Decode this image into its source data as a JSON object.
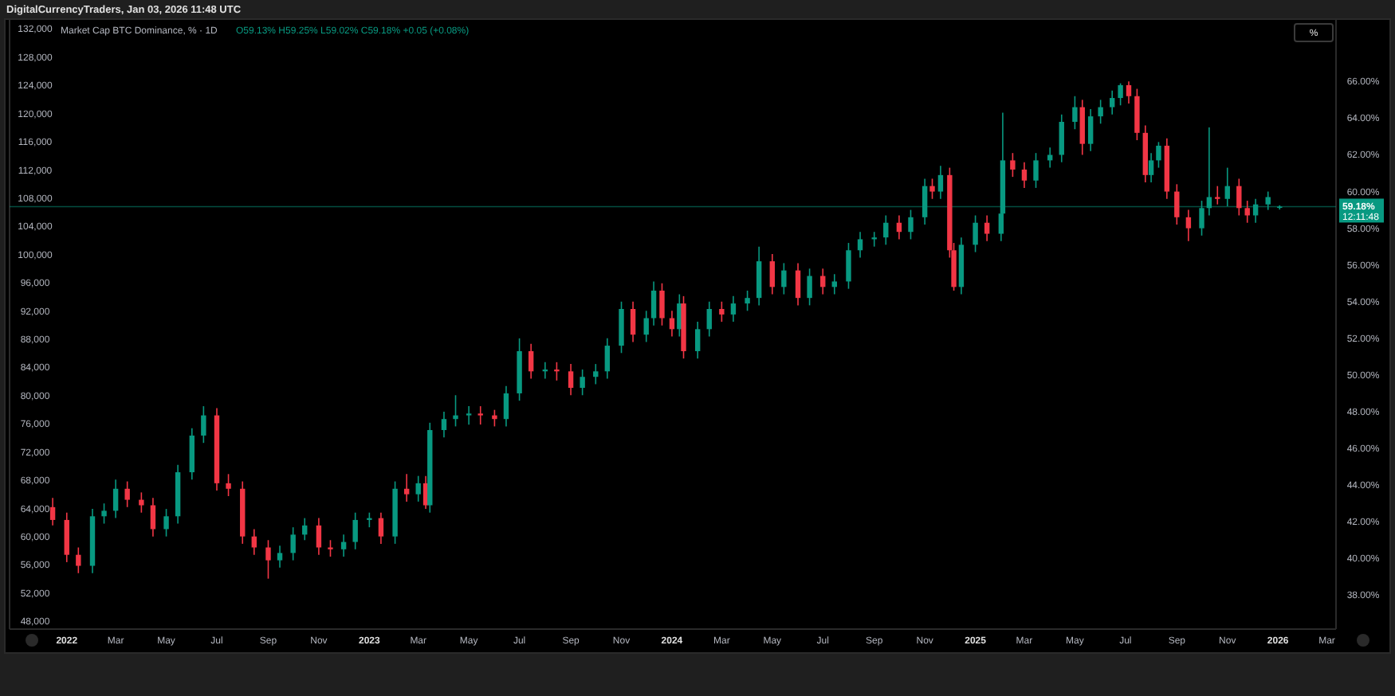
{
  "chart_data": {
    "type": "candlestick",
    "title": "Market Cap BTC Dominance, % · 1D",
    "annotations": [
      "DigitalCurrencyTraders, Jan 03, 2026 11:48 UTC",
      "O59.13% H59.25% L59.02% C59.18% +0.05 (+0.08%)",
      "12:11:48",
      "%"
    ],
    "x": [
      "2021-12-15",
      "2022-01-01",
      "2022-01-15",
      "2022-02-01",
      "2022-02-15",
      "2022-03-01",
      "2022-03-15",
      "2022-04-01",
      "2022-04-15",
      "2022-05-01",
      "2022-05-15",
      "2022-06-01",
      "2022-06-15",
      "2022-07-01",
      "2022-07-15",
      "2022-08-01",
      "2022-08-15",
      "2022-09-01",
      "2022-09-15",
      "2022-10-01",
      "2022-10-15",
      "2022-11-01",
      "2022-11-15",
      "2022-12-01",
      "2022-12-15",
      "2023-01-01",
      "2023-01-15",
      "2023-02-01",
      "2023-02-15",
      "2023-03-01",
      "2023-03-10",
      "2023-03-15",
      "2023-04-01",
      "2023-04-15",
      "2023-05-01",
      "2023-05-15",
      "2023-06-01",
      "2023-06-15",
      "2023-07-01",
      "2023-07-15",
      "2023-08-01",
      "2023-08-15",
      "2023-09-01",
      "2023-09-15",
      "2023-10-01",
      "2023-10-15",
      "2023-11-01",
      "2023-11-15",
      "2023-12-01",
      "2023-12-10",
      "2023-12-20",
      "2024-01-01",
      "2024-01-10",
      "2024-01-15",
      "2024-02-01",
      "2024-02-15",
      "2024-03-01",
      "2024-03-15",
      "2024-04-01",
      "2024-04-15",
      "2024-05-01",
      "2024-05-15",
      "2024-06-01",
      "2024-06-15",
      "2024-07-01",
      "2024-07-15",
      "2024-08-01",
      "2024-08-15",
      "2024-09-01",
      "2024-09-15",
      "2024-10-01",
      "2024-10-15",
      "2024-11-01",
      "2024-11-10",
      "2024-11-20",
      "2024-12-01",
      "2024-12-06",
      "2024-12-15",
      "2025-01-01",
      "2025-01-15",
      "2025-02-01",
      "2025-02-03",
      "2025-02-15",
      "2025-03-01",
      "2025-03-15",
      "2025-04-01",
      "2025-04-15",
      "2025-05-01",
      "2025-05-10",
      "2025-05-20",
      "2025-06-01",
      "2025-06-15",
      "2025-06-25",
      "2025-07-05",
      "2025-07-15",
      "2025-07-25",
      "2025-08-01",
      "2025-08-10",
      "2025-08-20",
      "2025-09-01",
      "2025-09-15",
      "2025-10-01",
      "2025-10-10",
      "2025-10-20",
      "2025-11-01",
      "2025-11-15",
      "2025-11-25",
      "2025-12-05",
      "2025-12-20",
      "2026-01-03"
    ],
    "ohlc": [
      [
        42.8,
        43.3,
        41.8,
        42.1
      ],
      [
        42.1,
        42.5,
        39.8,
        40.2
      ],
      [
        40.2,
        40.6,
        39.2,
        39.6
      ],
      [
        39.6,
        42.7,
        39.2,
        42.3
      ],
      [
        42.3,
        43.0,
        41.9,
        42.6
      ],
      [
        42.6,
        44.3,
        42.2,
        43.8
      ],
      [
        43.8,
        44.2,
        42.8,
        43.2
      ],
      [
        43.2,
        43.6,
        42.5,
        42.9
      ],
      [
        42.9,
        43.3,
        41.2,
        41.6
      ],
      [
        41.6,
        42.7,
        41.2,
        42.3
      ],
      [
        42.3,
        45.1,
        41.9,
        44.7
      ],
      [
        44.7,
        47.1,
        44.3,
        46.7
      ],
      [
        46.7,
        48.3,
        46.3,
        47.8
      ],
      [
        47.8,
        48.2,
        43.7,
        44.1
      ],
      [
        44.1,
        44.6,
        43.4,
        43.8
      ],
      [
        43.8,
        44.2,
        40.8,
        41.2
      ],
      [
        41.2,
        41.6,
        40.2,
        40.6
      ],
      [
        40.6,
        41.0,
        38.9,
        39.9
      ],
      [
        39.9,
        40.7,
        39.5,
        40.3
      ],
      [
        40.3,
        41.7,
        39.9,
        41.3
      ],
      [
        41.3,
        42.2,
        41.0,
        41.8
      ],
      [
        41.8,
        42.2,
        40.2,
        40.6
      ],
      [
        40.6,
        41.0,
        40.1,
        40.5
      ],
      [
        40.5,
        41.3,
        40.1,
        40.9
      ],
      [
        40.9,
        42.5,
        40.5,
        42.1
      ],
      [
        42.1,
        42.5,
        41.7,
        42.2
      ],
      [
        42.2,
        42.5,
        40.8,
        41.2
      ],
      [
        41.2,
        44.2,
        40.8,
        43.8
      ],
      [
        43.8,
        44.6,
        43.1,
        43.5
      ],
      [
        43.5,
        44.5,
        43.1,
        44.1
      ],
      [
        44.1,
        44.5,
        42.7,
        42.9
      ],
      [
        42.9,
        47.4,
        42.5,
        47.0
      ],
      [
        47.0,
        48.0,
        46.6,
        47.6
      ],
      [
        47.6,
        48.9,
        47.2,
        47.8
      ],
      [
        47.8,
        48.3,
        47.3,
        47.9
      ],
      [
        47.9,
        48.3,
        47.3,
        47.8
      ],
      [
        47.8,
        48.1,
        47.2,
        47.6
      ],
      [
        47.6,
        49.4,
        47.2,
        49.0
      ],
      [
        49.0,
        52.0,
        48.6,
        51.3
      ],
      [
        51.3,
        51.7,
        49.8,
        50.2
      ],
      [
        50.2,
        50.7,
        49.8,
        50.3
      ],
      [
        50.3,
        50.7,
        49.7,
        50.2
      ],
      [
        50.2,
        50.6,
        48.9,
        49.3
      ],
      [
        49.3,
        50.3,
        48.9,
        49.9
      ],
      [
        49.9,
        50.6,
        49.5,
        50.2
      ],
      [
        50.2,
        52.0,
        49.8,
        51.6
      ],
      [
        51.6,
        54.0,
        51.2,
        53.6
      ],
      [
        53.6,
        54.0,
        51.8,
        52.2
      ],
      [
        52.2,
        53.5,
        51.8,
        53.1
      ],
      [
        53.1,
        55.1,
        52.7,
        54.6
      ],
      [
        54.6,
        55.0,
        52.7,
        53.1
      ],
      [
        53.1,
        53.5,
        52.1,
        52.5
      ],
      [
        52.5,
        54.4,
        52.1,
        53.9
      ],
      [
        53.9,
        54.3,
        50.9,
        51.3
      ],
      [
        51.3,
        52.9,
        50.9,
        52.5
      ],
      [
        52.5,
        54.0,
        52.1,
        53.6
      ],
      [
        53.6,
        54.0,
        52.9,
        53.3
      ],
      [
        53.3,
        54.3,
        52.9,
        53.9
      ],
      [
        53.9,
        54.6,
        53.5,
        54.2
      ],
      [
        54.2,
        57.0,
        53.8,
        56.2
      ],
      [
        56.2,
        56.6,
        54.4,
        54.8
      ],
      [
        54.8,
        56.1,
        54.4,
        55.7
      ],
      [
        55.7,
        56.1,
        53.8,
        54.2
      ],
      [
        54.2,
        55.8,
        53.8,
        55.4
      ],
      [
        55.4,
        55.8,
        54.4,
        54.8
      ],
      [
        54.8,
        55.5,
        54.4,
        55.1
      ],
      [
        55.1,
        57.2,
        54.7,
        56.8
      ],
      [
        56.8,
        57.8,
        56.4,
        57.4
      ],
      [
        57.4,
        57.8,
        57.0,
        57.5
      ],
      [
        57.5,
        58.7,
        57.1,
        58.3
      ],
      [
        58.3,
        58.7,
        57.4,
        57.8
      ],
      [
        57.8,
        59.0,
        57.4,
        58.6
      ],
      [
        58.6,
        60.7,
        58.2,
        60.3
      ],
      [
        60.3,
        60.7,
        59.6,
        60.0
      ],
      [
        60.0,
        61.4,
        59.6,
        60.9
      ],
      [
        60.9,
        61.3,
        56.4,
        56.8
      ],
      [
        56.8,
        57.2,
        54.6,
        54.8
      ],
      [
        54.8,
        57.5,
        54.4,
        57.1
      ],
      [
        57.1,
        58.7,
        56.7,
        58.3
      ],
      [
        58.3,
        58.7,
        57.3,
        57.7
      ],
      [
        57.7,
        59.2,
        57.3,
        58.8
      ],
      [
        58.8,
        64.3,
        58.4,
        61.7
      ],
      [
        61.7,
        62.1,
        60.8,
        61.2
      ],
      [
        61.2,
        61.6,
        60.2,
        60.6
      ],
      [
        60.6,
        62.1,
        60.2,
        61.7
      ],
      [
        61.7,
        62.4,
        61.3,
        62.0
      ],
      [
        62.0,
        64.2,
        61.6,
        63.8
      ],
      [
        63.8,
        65.2,
        63.4,
        64.6
      ],
      [
        64.6,
        65.0,
        62.0,
        62.6
      ],
      [
        62.6,
        64.5,
        62.2,
        64.1
      ],
      [
        64.1,
        65.0,
        63.7,
        64.6
      ],
      [
        64.6,
        65.5,
        64.2,
        65.1
      ],
      [
        65.1,
        65.9,
        64.7,
        65.8
      ],
      [
        65.8,
        66.0,
        64.8,
        65.2
      ],
      [
        65.2,
        65.6,
        62.8,
        63.2
      ],
      [
        63.2,
        63.6,
        60.5,
        60.9
      ],
      [
        60.9,
        62.1,
        60.5,
        61.7
      ],
      [
        61.7,
        62.7,
        61.3,
        62.5
      ],
      [
        62.5,
        62.9,
        59.6,
        60.0
      ],
      [
        60.0,
        60.4,
        58.2,
        58.6
      ],
      [
        58.6,
        59.0,
        57.3,
        58.0
      ],
      [
        58.0,
        59.5,
        57.6,
        59.1
      ],
      [
        59.1,
        63.5,
        58.7,
        59.7
      ],
      [
        59.7,
        60.3,
        59.3,
        59.6
      ],
      [
        59.6,
        61.3,
        59.2,
        60.3
      ],
      [
        60.3,
        60.7,
        58.7,
        59.1
      ],
      [
        59.1,
        59.5,
        58.3,
        58.7
      ],
      [
        58.7,
        59.6,
        58.3,
        59.3
      ],
      [
        59.3,
        60.0,
        59.0,
        59.7
      ],
      [
        59.13,
        59.25,
        59.02,
        59.18
      ]
    ],
    "colors": [
      "#f23645",
      "#f23645",
      "#f23645",
      "#089981",
      "#089981",
      "#089981",
      "#f23645",
      "#f23645",
      "#f23645",
      "#089981",
      "#089981",
      "#089981",
      "#089981",
      "#f23645",
      "#f23645",
      "#f23645",
      "#f23645",
      "#f23645",
      "#089981",
      "#089981",
      "#089981",
      "#f23645",
      "#f23645",
      "#089981",
      "#089981",
      "#089981",
      "#f23645",
      "#089981",
      "#f23645",
      "#089981",
      "#f23645",
      "#089981",
      "#089981",
      "#089981",
      "#089981",
      "#f23645",
      "#f23645",
      "#089981",
      "#089981",
      "#f23645",
      "#089981",
      "#f23645",
      "#f23645",
      "#089981",
      "#089981",
      "#089981",
      "#089981",
      "#f23645",
      "#089981",
      "#089981",
      "#f23645",
      "#f23645",
      "#089981",
      "#f23645",
      "#089981",
      "#089981",
      "#f23645",
      "#089981",
      "#089981",
      "#089981",
      "#f23645",
      "#089981",
      "#f23645",
      "#089981",
      "#f23645",
      "#089981",
      "#089981",
      "#089981",
      "#089981",
      "#089981",
      "#f23645",
      "#089981",
      "#089981",
      "#f23645",
      "#089981",
      "#f23645",
      "#f23645",
      "#089981",
      "#089981",
      "#f23645",
      "#089981",
      "#089981",
      "#f23645",
      "#f23645",
      "#089981",
      "#089981",
      "#089981",
      "#089981",
      "#f23645",
      "#089981",
      "#089981",
      "#089981",
      "#089981",
      "#f23645",
      "#f23645",
      "#f23645",
      "#089981",
      "#089981",
      "#f23645",
      "#f23645",
      "#f23645",
      "#089981",
      "#089981",
      "#f23645",
      "#089981",
      "#f23645",
      "#f23645",
      "#089981",
      "#089981",
      "#089981"
    ],
    "xlim": [
      "2021-10-24",
      "2026-03-12"
    ],
    "xticks": [
      {
        "value": "2022-01-01",
        "label": "2022"
      },
      {
        "value": "2022-03-01",
        "label": "Mar"
      },
      {
        "value": "2022-05-01",
        "label": "May"
      },
      {
        "value": "2022-07-01",
        "label": "Jul"
      },
      {
        "value": "2022-09-01",
        "label": "Sep"
      },
      {
        "value": "2022-11-01",
        "label": "Nov"
      },
      {
        "value": "2023-01-01",
        "label": "2023"
      },
      {
        "value": "2023-03-01",
        "label": "Mar"
      },
      {
        "value": "2023-05-01",
        "label": "May"
      },
      {
        "value": "2023-07-01",
        "label": "Jul"
      },
      {
        "value": "2023-09-01",
        "label": "Sep"
      },
      {
        "value": "2023-11-01",
        "label": "Nov"
      },
      {
        "value": "2024-01-01",
        "label": "2024"
      },
      {
        "value": "2024-03-01",
        "label": "Mar"
      },
      {
        "value": "2024-05-01",
        "label": "May"
      },
      {
        "value": "2024-07-01",
        "label": "Jul"
      },
      {
        "value": "2024-09-01",
        "label": "Sep"
      },
      {
        "value": "2024-11-01",
        "label": "Nov"
      },
      {
        "value": "2025-01-01",
        "label": "2025"
      },
      {
        "value": "2025-03-01",
        "label": "Mar"
      },
      {
        "value": "2025-05-01",
        "label": "May"
      },
      {
        "value": "2025-07-01",
        "label": "Jul"
      },
      {
        "value": "2025-09-01",
        "label": "Sep"
      },
      {
        "value": "2025-11-01",
        "label": "Nov"
      },
      {
        "value": "2026-01-01",
        "label": "2026"
      },
      {
        "value": "2026-03-01",
        "label": "Mar"
      }
    ],
    "ylim": [
      36.15,
      69.4
    ],
    "yticks": [
      {
        "value": 38,
        "label": "38.00%"
      },
      {
        "value": 40,
        "label": "40.00%"
      },
      {
        "value": 42,
        "label": "42.00%"
      },
      {
        "value": 44,
        "label": "44.00%"
      },
      {
        "value": 46,
        "label": "46.00%"
      },
      {
        "value": 48,
        "label": "48.00%"
      },
      {
        "value": 50,
        "label": "50.00%"
      },
      {
        "value": 52,
        "label": "52.00%"
      },
      {
        "value": 54,
        "label": "54.00%"
      },
      {
        "value": 56,
        "label": "56.00%"
      },
      {
        "value": 58,
        "label": "58.00%"
      },
      {
        "value": 60,
        "label": "60.00%"
      },
      {
        "value": 62,
        "label": "62.00%"
      },
      {
        "value": 64,
        "label": "64.00%"
      },
      {
        "value": 66,
        "label": "66.00%"
      }
    ],
    "y2lim": [
      46900,
      133400
    ],
    "y2ticks": [
      {
        "value": 48000,
        "label": "48,000"
      },
      {
        "value": 52000,
        "label": "52,000"
      },
      {
        "value": 56000,
        "label": "56,000"
      },
      {
        "value": 60000,
        "label": "60,000"
      },
      {
        "value": 64000,
        "label": "64,000"
      },
      {
        "value": 68000,
        "label": "68,000"
      },
      {
        "value": 72000,
        "label": "72,000"
      },
      {
        "value": 76000,
        "label": "76,000"
      },
      {
        "value": 80000,
        "label": "80,000"
      },
      {
        "value": 84000,
        "label": "84,000"
      },
      {
        "value": 88000,
        "label": "88,000"
      },
      {
        "value": 92000,
        "label": "92,000"
      },
      {
        "value": 96000,
        "label": "96,000"
      },
      {
        "value": 100000,
        "label": "100,000"
      },
      {
        "value": 104000,
        "label": "104,000"
      },
      {
        "value": 108000,
        "label": "108,000"
      },
      {
        "value": 112000,
        "label": "112,000"
      },
      {
        "value": 116000,
        "label": "116,000"
      },
      {
        "value": 120000,
        "label": "120,000"
      },
      {
        "value": 124000,
        "label": "124,000"
      },
      {
        "value": 128000,
        "label": "128,000"
      },
      {
        "value": 132000,
        "label": "132,000"
      }
    ],
    "ref_lines": [
      {
        "axis": "y",
        "value": 59.18,
        "label": "59.18%",
        "color": "#089981"
      }
    ]
  }
}
